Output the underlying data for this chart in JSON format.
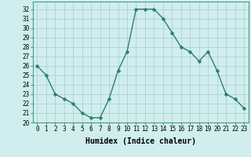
{
  "x": [
    0,
    1,
    2,
    3,
    4,
    5,
    6,
    7,
    8,
    9,
    10,
    11,
    12,
    13,
    14,
    15,
    16,
    17,
    18,
    19,
    20,
    21,
    22,
    23
  ],
  "y": [
    26,
    25,
    23,
    22.5,
    22,
    21,
    20.5,
    20.5,
    22.5,
    25.5,
    27.5,
    32,
    32,
    32,
    31,
    29.5,
    28,
    27.5,
    26.5,
    27.5,
    25.5,
    23,
    22.5,
    21.5
  ],
  "xlabel": "Humidex (Indice chaleur)",
  "ylabel": "",
  "xlim": [
    -0.5,
    23.5
  ],
  "ylim": [
    20,
    32.8
  ],
  "yticks": [
    20,
    21,
    22,
    23,
    24,
    25,
    26,
    27,
    28,
    29,
    30,
    31,
    32
  ],
  "xticks": [
    0,
    1,
    2,
    3,
    4,
    5,
    6,
    7,
    8,
    9,
    10,
    11,
    12,
    13,
    14,
    15,
    16,
    17,
    18,
    19,
    20,
    21,
    22,
    23
  ],
  "line_color": "#2e7d6e",
  "marker_color": "#2e7d6e",
  "bg_color": "#d0eeee",
  "grid_color": "#aacccc",
  "font_color": "#000000",
  "xlabel_fontsize": 7,
  "tick_fontsize": 5.5,
  "line_width": 1.0,
  "marker_size": 2.5
}
